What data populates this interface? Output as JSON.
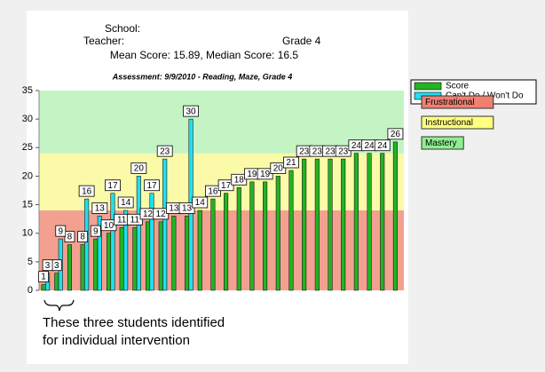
{
  "chart_data": {
    "type": "bar",
    "school_label": "School:",
    "teacher_label": "Teacher:",
    "grade": "Grade 4",
    "subtitle": "Mean Score: 15.89, Median Score: 16.5",
    "title": "Assessment: 9/9/2010 - Reading, Maze, Grade 4",
    "categories": [
      null,
      null,
      null,
      null,
      null,
      null,
      null,
      null,
      null,
      null,
      null,
      null,
      null,
      null,
      null,
      null,
      null,
      null,
      null,
      null,
      null,
      null,
      null,
      null,
      null,
      null,
      null,
      null
    ],
    "series": [
      {
        "name": "Score",
        "color": "#22b422",
        "values": [
          1,
          3,
          8,
          8,
          9,
          10,
          11,
          11,
          12,
          12,
          13,
          13,
          14,
          16,
          17,
          18,
          19,
          19,
          20,
          21,
          23,
          23,
          23,
          23,
          24,
          24,
          24,
          26
        ]
      },
      {
        "name": "Can't Do / Won't Do",
        "color": "#1ee0f0",
        "values": [
          3,
          9,
          null,
          16,
          13,
          17,
          14,
          20,
          17,
          23,
          null,
          30,
          null,
          null,
          null,
          null,
          null,
          null,
          null,
          null,
          null,
          null,
          null,
          null,
          null,
          null,
          null,
          null
        ]
      }
    ],
    "bands": [
      {
        "name": "Frustrational",
        "from": 0,
        "to": 14,
        "color": "#f4a090",
        "legend_color": "#f08070"
      },
      {
        "name": "Instructional",
        "from": 14,
        "to": 24,
        "color": "#fafaa8",
        "legend_color": "#ffff80"
      },
      {
        "name": "Mastery",
        "from": 24,
        "to": 35,
        "color": "#c4f4c4",
        "legend_color": "#90ee90"
      }
    ],
    "ylim": [
      0,
      35
    ],
    "yticks": [
      0,
      5,
      10,
      15,
      20,
      25,
      30,
      35
    ],
    "annotation": [
      "These three students identified",
      "for individual intervention"
    ]
  }
}
